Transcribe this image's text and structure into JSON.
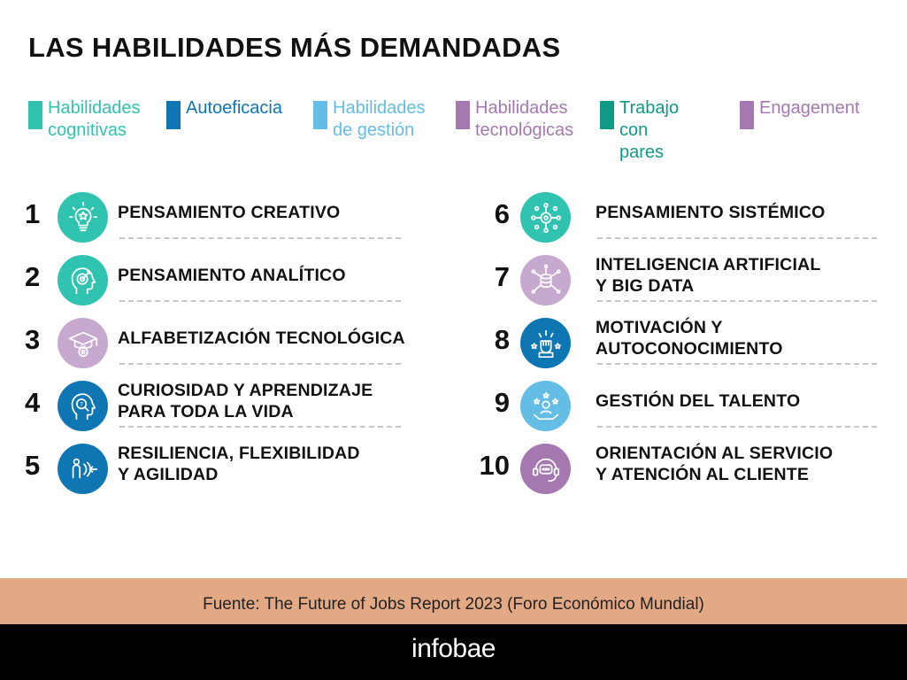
{
  "title": "LAS HABILIDADES MÁS DEMANDADAS",
  "colors": {
    "cognitive": "#2fc3b0",
    "selfefficacy": "#0f76b4",
    "management": "#63bde4",
    "tech": "#a578b1",
    "peers": "#0f9a86",
    "engagement": "#a578b1"
  },
  "legend": [
    {
      "label": "Habilidades\ncognitivas",
      "color": "#2fc3b0"
    },
    {
      "label": "Autoeficacia",
      "color": "#0f76b4"
    },
    {
      "label": "Habilidades\nde gestión",
      "color": "#63bde4"
    },
    {
      "label": "Habilidades\ntecnológicas",
      "color": "#a578b1"
    },
    {
      "label": "Trabajo con\npares",
      "color": "#0f9a86"
    },
    {
      "label": "Engagement",
      "color": "#a578b1"
    }
  ],
  "skills": [
    {
      "rank": "1",
      "name": "PENSAMIENTO CREATIVO",
      "icon": "lightbulb-star-icon",
      "color": "#2fc3b0"
    },
    {
      "rank": "2",
      "name": "PENSAMIENTO ANALÍTICO",
      "icon": "head-target-icon",
      "color": "#2fc3b0"
    },
    {
      "rank": "3",
      "name": "ALFABETIZACIÓN TECNOLÓGICA",
      "icon": "graduation-gear-icon",
      "color": "#a578b1"
    },
    {
      "rank": "4",
      "name": "CURIOSIDAD Y APRENDIZAJE\nPARA TODA LA VIDA",
      "icon": "head-magnifier-icon",
      "color": "#0f76b4"
    },
    {
      "rank": "5",
      "name": "RESILIENCIA, FLEXIBILIDAD\nY AGILIDAD",
      "icon": "person-waves-icon",
      "color": "#0f76b4"
    },
    {
      "rank": "6",
      "name": "PENSAMIENTO SISTÉMICO",
      "icon": "network-gear-icon",
      "color": "#2fc3b0"
    },
    {
      "rank": "7",
      "name": "INTELIGENCIA ARTIFICIAL\n Y BIG DATA",
      "icon": "database-network-icon",
      "color": "#a578b1"
    },
    {
      "rank": "8",
      "name": "MOTIVACIÓN Y\nAUTOCONOCIMIENTO",
      "icon": "raised-fist-icon",
      "color": "#0f76b4"
    },
    {
      "rank": "9",
      "name": "GESTIÓN DEL TALENTO",
      "icon": "hand-stars-icon",
      "color": "#63bde4"
    },
    {
      "rank": "10",
      "name": "ORIENTACIÓN AL SERVICIO\nY ATENCIÓN AL CLIENTE",
      "icon": "headset-chat-icon",
      "color": "#a578b1"
    }
  ],
  "source": "Fuente: The Future of Jobs Report 2023 (Foro Económico Mundial)",
  "brand": "infobae"
}
